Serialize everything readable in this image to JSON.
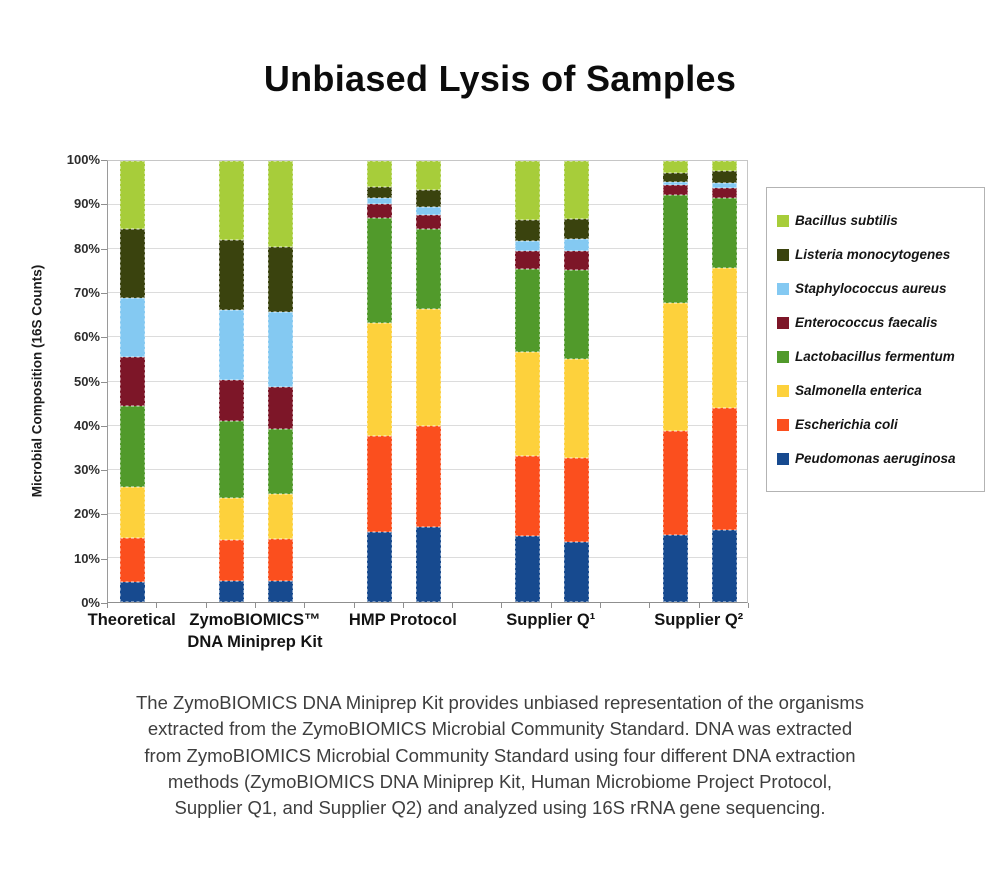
{
  "chart_data": {
    "type": "bar",
    "subtype": "stacked-100-percent",
    "title": "Unbiased Lysis of Samples",
    "ylabel": "Microbial Composition (16S Counts)",
    "ylim": [
      0,
      100
    ],
    "yticks": [
      "0%",
      "10%",
      "20%",
      "30%",
      "40%",
      "50%",
      "60%",
      "70%",
      "80%",
      "90%",
      "100%"
    ],
    "grid": "horizontal",
    "legend_position": "right",
    "groups": [
      {
        "label": "Theoretical",
        "bar_indices": [
          0
        ]
      },
      {
        "label": "ZymoBIOMICS™\nDNA Miniprep Kit",
        "bar_indices": [
          1,
          2
        ]
      },
      {
        "label": "HMP Protocol",
        "bar_indices": [
          3,
          4
        ]
      },
      {
        "label": "Supplier Q¹",
        "bar_indices": [
          5,
          6
        ]
      },
      {
        "label": "Supplier Q²",
        "bar_indices": [
          7,
          8
        ]
      }
    ],
    "series_note": "values are percent of 16S counts per bar, listed bottom-to-top of stack; 9 bars: Theoretical, ZymoBIOMICS x2, HMP Protocol x2, Supplier Q1 x2, Supplier Q2 x2",
    "series": [
      {
        "name": "Peudomonas aeruginosa",
        "color": "#174a8f",
        "values": [
          4.5,
          4.7,
          4.7,
          15.8,
          16.9,
          14.9,
          13.5,
          15.3,
          16.3
        ]
      },
      {
        "name": "Escherichia coli",
        "color": "#fb4f1e",
        "values": [
          10.0,
          9.3,
          9.6,
          21.9,
          23.1,
          18.1,
          19.2,
          23.5,
          27.7
        ]
      },
      {
        "name": "Salmonella enterica",
        "color": "#fdd13c",
        "values": [
          11.5,
          9.5,
          10.1,
          25.5,
          26.4,
          23.7,
          22.4,
          28.9,
          31.8
        ]
      },
      {
        "name": "Lactobacillus fermentum",
        "color": "#519a2b",
        "values": [
          18.5,
          17.5,
          14.8,
          23.9,
          18.2,
          18.9,
          20.1,
          24.6,
          15.8
        ]
      },
      {
        "name": "Enterococcus faecalis",
        "color": "#7d1628",
        "values": [
          11.0,
          9.3,
          9.6,
          3.2,
          3.2,
          4.1,
          4.5,
          2.3,
          2.3
        ]
      },
      {
        "name": "Staphylococcus aureus",
        "color": "#84c9f2",
        "values": [
          13.5,
          16.0,
          16.9,
          1.3,
          1.8,
          2.2,
          2.7,
          0.7,
          1.1
        ]
      },
      {
        "name": "Listeria monocytogenes",
        "color": "#3a430e",
        "values": [
          15.5,
          15.7,
          14.8,
          2.4,
          3.9,
          4.8,
          4.5,
          2.0,
          2.7
        ]
      },
      {
        "name": "Bacillus subtilis",
        "color": "#a7cd3a",
        "values": [
          15.5,
          18.0,
          19.5,
          6.0,
          6.5,
          13.3,
          13.1,
          2.7,
          2.3
        ]
      }
    ]
  },
  "caption_lines": [
    "The ZymoBIOMICS DNA Miniprep Kit provides unbiased representation of the organisms",
    "extracted from the ZymoBIOMICS Microbial Community Standard. DNA was extracted",
    "from ZymoBIOMICS Microbial Community Standard using four different DNA extraction",
    "methods (ZymoBIOMICS DNA Miniprep Kit, Human Microbiome Project Protocol,",
    "Supplier Q1, and Supplier Q2) and analyzed using 16S rRNA gene sequencing."
  ]
}
